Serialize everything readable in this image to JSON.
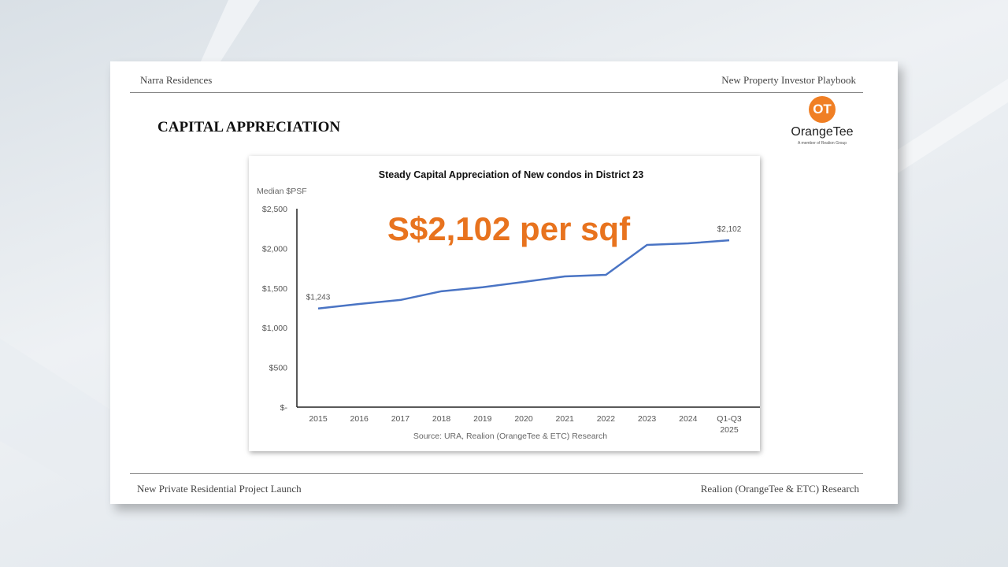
{
  "header": {
    "left": "Narra Residences",
    "right": "New Property Investor Playbook"
  },
  "title": "CAPITAL APPRECIATION",
  "logo": {
    "mark": "OT",
    "name": "OrangeTee",
    "tagline": "A member of Realion Group"
  },
  "footer": {
    "left": "New Private Residential Project Launch",
    "right": "Realion (OrangeTee & ETC) Research"
  },
  "colors": {
    "accent": "#e8731e",
    "line": "#4a74c4"
  },
  "chart_data": {
    "type": "line",
    "title": "Steady Capital Appreciation of New condos in District 23",
    "ylabel": "Median $PSF",
    "xlabel": "",
    "source": "Source: URA, Realion (OrangeTee & ETC) Research",
    "highlight": "S$2,102 per sqf",
    "categories": [
      "2015",
      "2016",
      "2017",
      "2018",
      "2019",
      "2020",
      "2021",
      "2022",
      "2023",
      "2024",
      "Q1-Q3 2025"
    ],
    "series": [
      {
        "name": "Median $PSF",
        "values": [
          1243,
          1300,
          1350,
          1460,
          1510,
          1577,
          1647,
          1667,
          2044,
          2063,
          2102
        ]
      }
    ],
    "data_labels": [
      {
        "index": 0,
        "text": "$1,243"
      },
      {
        "index": 10,
        "text": "$2,102"
      }
    ],
    "yticks": [
      0,
      500,
      1000,
      1500,
      2000,
      2500
    ],
    "ytick_labels": [
      "$-",
      "$500",
      "$1,000",
      "$1,500",
      "$2,000",
      "$2,500"
    ],
    "ylim": [
      0,
      2500
    ],
    "grid": false
  }
}
